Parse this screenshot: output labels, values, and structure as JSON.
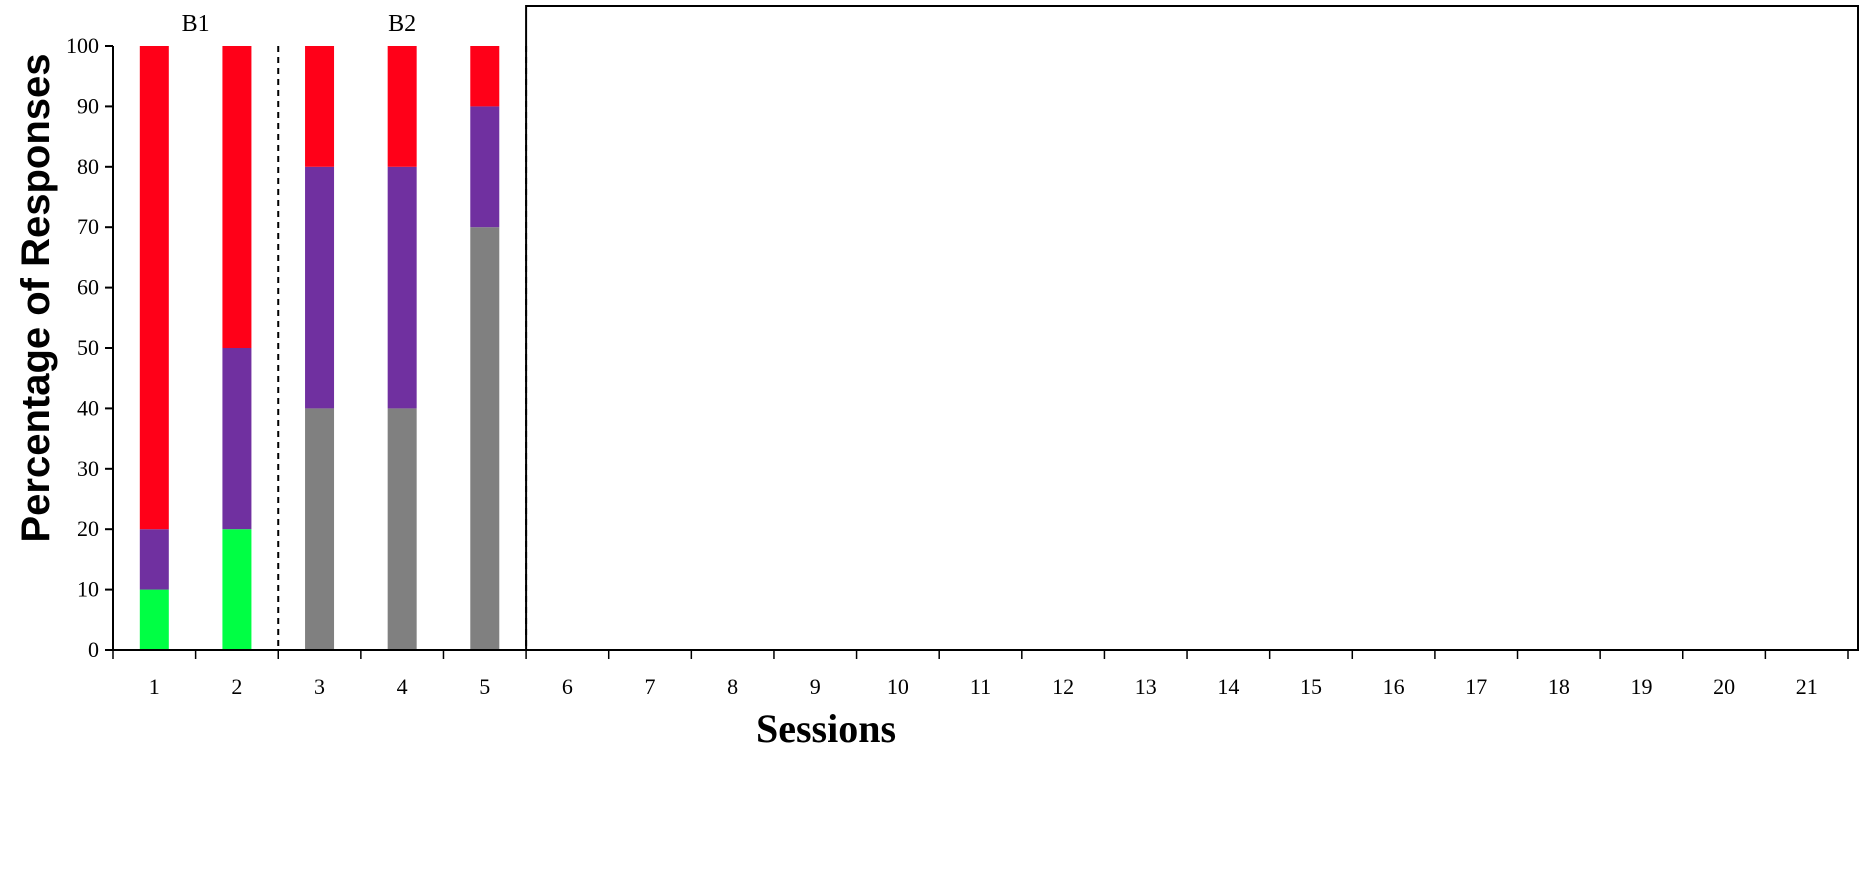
{
  "chart_data": {
    "type": "bar",
    "stacked": true,
    "title": "",
    "xlabel": "Sessions",
    "ylabel": "Percentage of Responses",
    "ylim": [
      0,
      100
    ],
    "yticks": [
      0,
      10,
      20,
      30,
      40,
      50,
      60,
      70,
      80,
      90,
      100
    ],
    "categories": [
      "1",
      "2",
      "3",
      "4",
      "5",
      "6",
      "7",
      "8",
      "9",
      "10",
      "11",
      "12",
      "13",
      "14",
      "15",
      "16",
      "17",
      "18",
      "19",
      "20",
      "21"
    ],
    "series": [
      {
        "color": "#00ff44",
        "values": [
          10,
          20,
          0,
          0,
          0,
          null,
          null,
          null,
          null,
          null,
          null,
          null,
          null,
          null,
          null,
          null,
          null,
          null,
          null,
          null,
          null
        ]
      },
      {
        "color": "#808080",
        "values": [
          0,
          0,
          40,
          40,
          70,
          null,
          null,
          null,
          null,
          null,
          null,
          null,
          null,
          null,
          null,
          null,
          null,
          null,
          null,
          null,
          null
        ]
      },
      {
        "color": "#7030a0",
        "values": [
          10,
          30,
          40,
          40,
          20,
          null,
          null,
          null,
          null,
          null,
          null,
          null,
          null,
          null,
          null,
          null,
          null,
          null,
          null,
          null,
          null
        ]
      },
      {
        "color": "#ff0018",
        "values": [
          80,
          50,
          20,
          20,
          10,
          null,
          null,
          null,
          null,
          null,
          null,
          null,
          null,
          null,
          null,
          null,
          null,
          null,
          null,
          null,
          null
        ]
      }
    ],
    "phases": [
      {
        "label": "B1",
        "sessions": [
          1,
          2
        ]
      },
      {
        "label": "B2",
        "sessions": [
          3,
          4,
          5
        ]
      }
    ],
    "phase_lines_after_session": [
      2,
      5
    ],
    "grid": false,
    "legend": "none"
  }
}
